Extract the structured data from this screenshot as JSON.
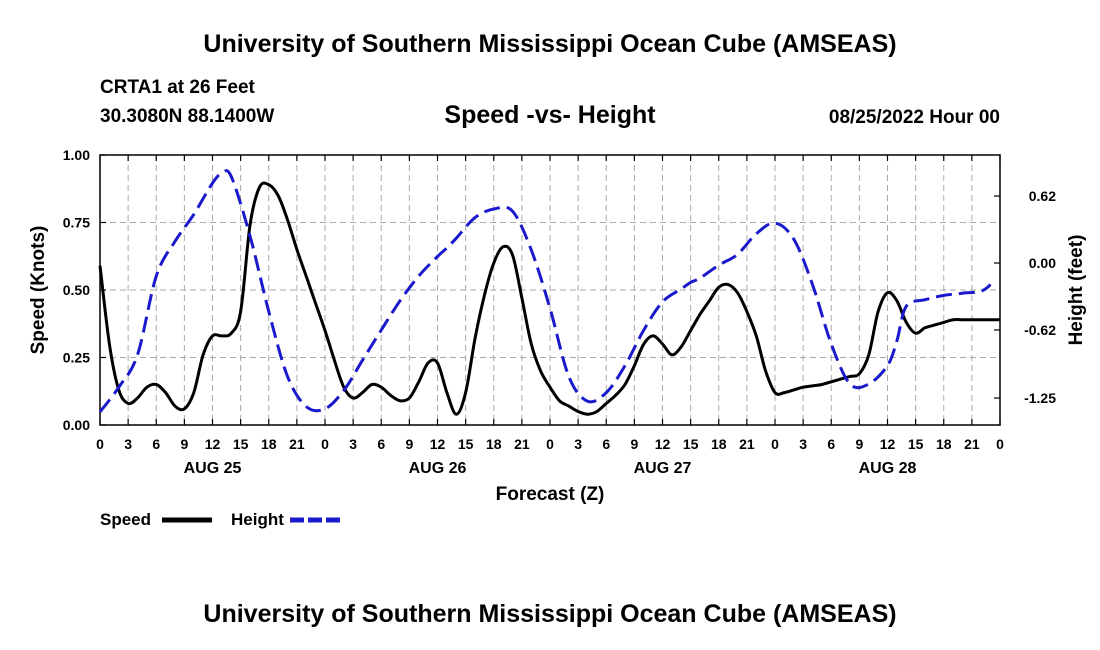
{
  "header": {
    "title": "University of Southern Mississippi Ocean Cube (AMSEAS)",
    "station": "CRTA1 at 26 Feet",
    "coords": "30.3080N  88.1400W",
    "chart_title": "Speed -vs- Height",
    "datetime": "08/25/2022 Hour 00",
    "footer_title": "University of Southern Mississippi Ocean Cube (AMSEAS)"
  },
  "legend": {
    "speed_label": "Speed",
    "height_label": "Height"
  },
  "colors": {
    "speed": "#000000",
    "height": "#1a1acc",
    "grid": "#aaaaaa"
  },
  "chart_data": {
    "type": "line",
    "title": "Speed -vs- Height",
    "xlabel": "Forecast (Z)",
    "ylabel": "Speed (Knots)",
    "y2label": "Height (feet)",
    "xlim": [
      0,
      96
    ],
    "ylim": [
      0,
      1
    ],
    "y2lim": [
      -1.5,
      1.0
    ],
    "x_ticks": [
      0,
      3,
      6,
      9,
      12,
      15,
      18,
      21,
      24,
      27,
      30,
      33,
      36,
      39,
      42,
      45,
      48,
      51,
      54,
      57,
      60,
      63,
      66,
      69,
      72,
      75,
      78,
      81,
      84,
      87,
      90,
      93,
      96
    ],
    "x_tick_labels": [
      "0",
      "3",
      "6",
      "9",
      "12",
      "15",
      "18",
      "21",
      "0",
      "3",
      "6",
      "9",
      "12",
      "15",
      "18",
      "21",
      "0",
      "3",
      "6",
      "9",
      "12",
      "15",
      "18",
      "21",
      "0",
      "3",
      "6",
      "9",
      "12",
      "15",
      "18",
      "21",
      "0"
    ],
    "day_labels": [
      {
        "label": "AUG 25",
        "x": 12
      },
      {
        "label": "AUG 26",
        "x": 36
      },
      {
        "label": "AUG 27",
        "x": 60
      },
      {
        "label": "AUG 28",
        "x": 84
      }
    ],
    "y_ticks": [
      0,
      0.25,
      0.5,
      0.75,
      1.0
    ],
    "y_tick_labels": [
      "0.00",
      "0.25",
      "0.50",
      "0.75",
      "1.00"
    ],
    "y2_ticks": [
      0.62,
      0.0,
      -0.62,
      -1.25
    ],
    "y2_tick_labels": [
      "0.62",
      "0.00",
      "-0.62",
      "-1.25"
    ],
    "grid": true,
    "series": [
      {
        "name": "Speed",
        "axis": "left",
        "style": "solid",
        "x": [
          0,
          1,
          2,
          3,
          4,
          5,
          6,
          7,
          8,
          9,
          10,
          11,
          12,
          13,
          14,
          15,
          16,
          17,
          18,
          19,
          20,
          21,
          22,
          23,
          24,
          25,
          26,
          27,
          28,
          29,
          30,
          31,
          32,
          33,
          34,
          35,
          36,
          37,
          38,
          39,
          40,
          41,
          42,
          43,
          44,
          45,
          46,
          47,
          48,
          49,
          50,
          51,
          52,
          53,
          54,
          55,
          56,
          57,
          58,
          59,
          60,
          61,
          62,
          63,
          64,
          65,
          66,
          67,
          68,
          69,
          70,
          71,
          72,
          73,
          74,
          75,
          76,
          77,
          78,
          79,
          80,
          81,
          82,
          83,
          84,
          85,
          86,
          87,
          88,
          89,
          90,
          91,
          92,
          93,
          94,
          95,
          96
        ],
        "values": [
          0.59,
          0.3,
          0.13,
          0.08,
          0.1,
          0.14,
          0.15,
          0.12,
          0.07,
          0.06,
          0.12,
          0.26,
          0.33,
          0.33,
          0.34,
          0.42,
          0.74,
          0.88,
          0.89,
          0.85,
          0.76,
          0.65,
          0.55,
          0.45,
          0.35,
          0.24,
          0.14,
          0.1,
          0.12,
          0.15,
          0.14,
          0.11,
          0.09,
          0.1,
          0.16,
          0.23,
          0.23,
          0.12,
          0.04,
          0.12,
          0.32,
          0.48,
          0.6,
          0.66,
          0.63,
          0.47,
          0.3,
          0.2,
          0.14,
          0.09,
          0.07,
          0.05,
          0.04,
          0.05,
          0.08,
          0.11,
          0.15,
          0.22,
          0.3,
          0.33,
          0.3,
          0.26,
          0.29,
          0.35,
          0.41,
          0.46,
          0.51,
          0.52,
          0.49,
          0.42,
          0.33,
          0.2,
          0.12,
          0.12,
          0.13,
          0.14,
          0.145,
          0.15,
          0.16,
          0.17,
          0.18,
          0.19,
          0.26,
          0.42,
          0.49,
          0.46,
          0.38,
          0.34,
          0.36,
          0.37,
          0.38,
          0.39,
          0.39,
          0.39,
          0.39,
          0.39,
          0.39
        ]
      },
      {
        "name": "Height",
        "axis": "right",
        "style": "dashed",
        "x": [
          0,
          2,
          4,
          6,
          8,
          10,
          12,
          13,
          14,
          16,
          18,
          20,
          22,
          24,
          26,
          28,
          30,
          32,
          34,
          36,
          37,
          38,
          40,
          42,
          44,
          46,
          48,
          50,
          52,
          54,
          56,
          58,
          60,
          62,
          63,
          64,
          66,
          68,
          70,
          72,
          74,
          76,
          78,
          80,
          82,
          84,
          85,
          86,
          88,
          90,
          92,
          94,
          95
        ],
        "values": [
          -1.38,
          -1.15,
          -0.85,
          -0.12,
          0.2,
          0.45,
          0.74,
          0.83,
          0.8,
          0.25,
          -0.45,
          -1.05,
          -1.33,
          -1.35,
          -1.18,
          -0.9,
          -0.62,
          -0.35,
          -0.12,
          0.06,
          0.14,
          0.23,
          0.42,
          0.5,
          0.48,
          0.12,
          -0.42,
          -1.05,
          -1.28,
          -1.2,
          -0.95,
          -0.62,
          -0.36,
          -0.24,
          -0.18,
          -0.14,
          -0.02,
          0.08,
          0.27,
          0.37,
          0.22,
          -0.2,
          -0.75,
          -1.12,
          -1.12,
          -0.95,
          -0.72,
          -0.4,
          -0.34,
          -0.3,
          -0.28,
          -0.26,
          -0.2
        ]
      }
    ]
  }
}
